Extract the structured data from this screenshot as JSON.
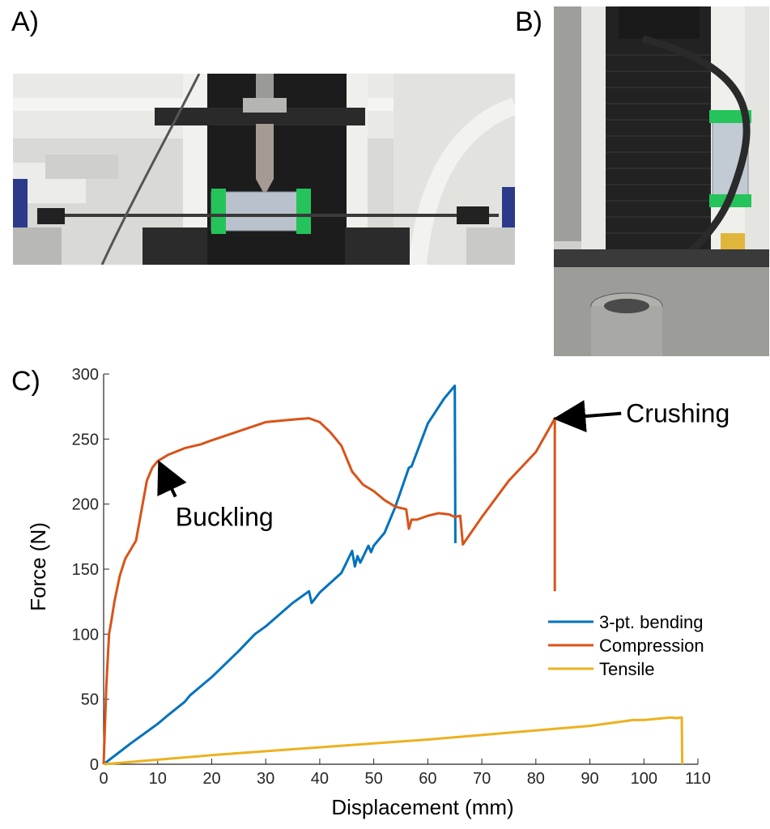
{
  "panels": {
    "a": "A)",
    "b": "B)",
    "c": "C)"
  },
  "photo_a": {
    "description_icon": "three-point-bending-test-photo"
  },
  "photo_b": {
    "description_icon": "compression-test-photo"
  },
  "chart_data": {
    "type": "line",
    "xlabel": "Displacement (mm)",
    "ylabel": "Force (N)",
    "xlim": [
      0,
      110
    ],
    "ylim": [
      0,
      300
    ],
    "xticks": [
      0,
      10,
      20,
      30,
      40,
      50,
      60,
      70,
      80,
      90,
      100,
      110
    ],
    "yticks": [
      0,
      50,
      100,
      150,
      200,
      250,
      300
    ],
    "grid": false,
    "legend_position": "right",
    "series": [
      {
        "name": "3-pt. bending",
        "color": "#0072BD",
        "x": [
          0,
          5,
          10,
          12,
          15,
          16,
          20,
          25,
          28,
          30,
          35,
          38,
          38.5,
          40,
          44,
          46,
          46.5,
          47,
          47.5,
          49,
          49.5,
          50,
          52,
          54,
          56,
          56.5,
          57,
          60,
          63,
          65,
          65.1
        ],
        "y": [
          0,
          16,
          31,
          38,
          48,
          53,
          67,
          87,
          100,
          106,
          124,
          133,
          124,
          132,
          147,
          164,
          152,
          160,
          155,
          168,
          163,
          168,
          178,
          198,
          222,
          228,
          229,
          262,
          281,
          291,
          170
        ]
      },
      {
        "name": "Compression",
        "color": "#D95319",
        "x": [
          0,
          0.5,
          1,
          1.5,
          2,
          3,
          4,
          5,
          6,
          7,
          8,
          9,
          10,
          12,
          15,
          18,
          20,
          25,
          30,
          35,
          38,
          40,
          42,
          44,
          46,
          48,
          50,
          52,
          54,
          56,
          56.5,
          57,
          58,
          60,
          62,
          64,
          65,
          66,
          66.5,
          70,
          75,
          80,
          83,
          83.5,
          83.5
        ],
        "y": [
          0,
          60,
          100,
          112,
          125,
          145,
          158,
          165,
          172,
          195,
          218,
          228,
          233,
          238,
          243,
          246,
          249,
          256,
          263,
          265,
          266,
          263,
          255,
          245,
          225,
          215,
          210,
          203,
          198,
          196,
          181,
          188,
          188,
          191,
          193,
          192,
          190,
          191,
          169,
          190,
          218,
          240,
          262,
          266,
          133
        ],
        "annotations": [
          {
            "text": "Buckling",
            "x": 10,
            "y": 233
          },
          {
            "text": "Crushing",
            "x": 83.5,
            "y": 266
          }
        ]
      },
      {
        "name": "Tensile",
        "color": "#EDB120",
        "x": [
          0,
          10,
          20,
          30,
          40,
          50,
          60,
          70,
          80,
          90,
          98,
          100,
          105,
          106,
          107,
          107.1
        ],
        "y": [
          0,
          3.5,
          7,
          10,
          13,
          16,
          19,
          22.5,
          26,
          29.5,
          34,
          34,
          36,
          35.5,
          36,
          0
        ]
      }
    ]
  }
}
